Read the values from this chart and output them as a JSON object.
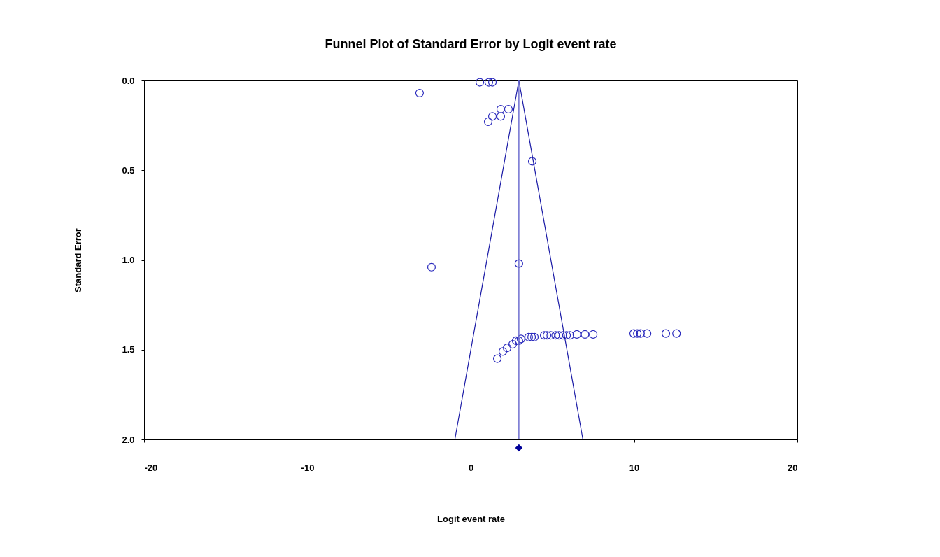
{
  "chart_data": {
    "type": "scatter",
    "title": "Funnel Plot of Standard Error by Logit event rate",
    "xlabel": "Logit event rate",
    "ylabel": "Standard Error",
    "xlim": [
      -20,
      20
    ],
    "xticks": [
      -20,
      -10,
      0,
      10,
      20
    ],
    "ylim": [
      2.0,
      0.0
    ],
    "yticks": [
      {
        "value": 0,
        "label": "0.0"
      },
      {
        "value": 0.5,
        "label": "0.5"
      },
      {
        "value": 1,
        "label": "1.0"
      },
      {
        "value": 1.5,
        "label": "1.5"
      },
      {
        "value": 2,
        "label": "2.0"
      }
    ],
    "grid": false,
    "series": [
      {
        "marker": "circle",
        "color": "#2b2bbd",
        "x": [
          -3.13,
          0.56,
          1.11,
          1.33,
          1.84,
          2.31,
          1.33,
          1.84,
          1.07,
          3.77,
          -2.4,
          2.95,
          1.63,
          1.97,
          2.23,
          2.57,
          2.78,
          2.95,
          3.08,
          3.55,
          3.73,
          3.9,
          4.5,
          4.67,
          4.9,
          5.2,
          5.4,
          5.65,
          5.87,
          6.08,
          6.5,
          7.0,
          7.5,
          9.98,
          10.2,
          10.4,
          10.8,
          11.95,
          12.6
        ],
        "values": [
          0.07,
          0.01,
          0.01,
          0.01,
          0.16,
          0.16,
          0.2,
          0.2,
          0.23,
          0.45,
          1.04,
          1.02,
          1.55,
          1.51,
          1.49,
          1.47,
          1.45,
          1.45,
          1.44,
          1.43,
          1.43,
          1.43,
          1.42,
          1.42,
          1.42,
          1.42,
          1.42,
          1.42,
          1.42,
          1.42,
          1.415,
          1.415,
          1.415,
          1.41,
          1.41,
          1.41,
          1.41,
          1.41,
          1.41
        ]
      },
      {
        "type": "line",
        "color": "#1a1aa6",
        "x": [
          -0.97,
          2.95,
          6.87
        ],
        "values": [
          2,
          0,
          2
        ]
      }
    ],
    "ref_lines": [
      {
        "axis": "x",
        "value": 2.95,
        "color": "#6f6fd0"
      }
    ]
  }
}
